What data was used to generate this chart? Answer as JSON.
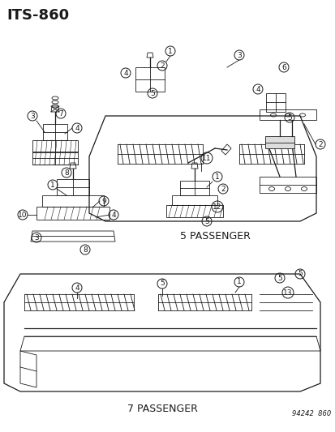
{
  "title": "ITS-860",
  "label_5pass": "5 PASSENGER",
  "label_7pass": "7 PASSENGER",
  "ref_code": "94242  860",
  "bg_color": "#ffffff",
  "line_color": "#1a1a1a",
  "text_color": "#1a1a1a",
  "title_fontsize": 13,
  "label_fontsize": 8,
  "ref_fontsize": 6,
  "callout_fontsize": 6.5,
  "fig_width": 4.14,
  "fig_height": 5.33,
  "dpi": 100
}
